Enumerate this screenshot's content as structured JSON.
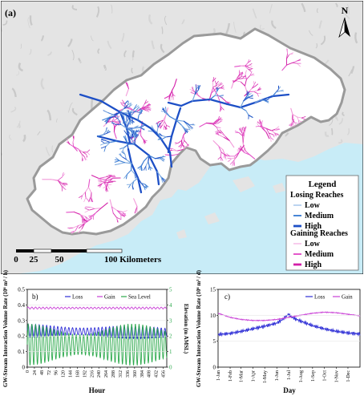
{
  "map": {
    "panel_label": "(a)",
    "north_label": "N",
    "scale_ticks": [
      "0",
      "25",
      "50",
      "100 Kilometers"
    ],
    "legend": {
      "title": "Legend",
      "losing_title": "Losing Reaches",
      "gaining_title": "Gaining Reaches",
      "losing": [
        {
          "label": "Low",
          "color": "#7aa9e0"
        },
        {
          "label": "Medium",
          "color": "#3f7fd4"
        },
        {
          "label": "High",
          "color": "#1d4fc6"
        }
      ],
      "gaining": [
        {
          "label": "Low",
          "color": "#f29ad9"
        },
        {
          "label": "Medium",
          "color": "#e34fc7"
        },
        {
          "label": "High",
          "color": "#d31fa8"
        }
      ]
    },
    "colors": {
      "sea": "#c8ecf7",
      "land": "#e4e4e4",
      "basin": "#ffffff",
      "boundary": "#9a9a9a"
    }
  },
  "chart_data": [
    {
      "type": "line",
      "panel_label": "b)",
      "xlabel": "Hour",
      "ylabel": "GW-Stream Interaction Volume Rate (10⁶ m³ / h)",
      "y2label": "Elevation (m AMSL)",
      "x_ticks": [
        "0",
        "24",
        "48",
        "72",
        "96",
        "120",
        "144",
        "168",
        "192",
        "216",
        "240",
        "264",
        "288",
        "312",
        "336",
        "360",
        "384",
        "408",
        "432",
        "456"
      ],
      "xlim": [
        0,
        468
      ],
      "ylim": [
        0,
        0.5
      ],
      "y_ticks": [
        "0",
        "0.1",
        "0.2",
        "0.3",
        "0.4",
        "0.5"
      ],
      "y2lim": [
        0,
        5
      ],
      "y2_ticks": [
        "0",
        "1",
        "2",
        "3",
        "4",
        "5"
      ],
      "series": [
        {
          "name": "Loss",
          "axis": "left",
          "color": "#2f2fd6",
          "base": 0.235,
          "amp": 0.032,
          "period": 12.4,
          "mod": 0.3,
          "trend": -3e-05
        },
        {
          "name": "Gain",
          "axis": "left",
          "color": "#c93fd6",
          "base": 0.38,
          "amp": 0.006,
          "period": 12.4,
          "mod": 0.1,
          "trend": 0
        },
        {
          "name": "Sea Level",
          "axis": "right",
          "color": "#2aa84a",
          "base": 1.45,
          "amp": 1.0,
          "period": 12.4,
          "mod": 0.35,
          "trend": 0
        }
      ]
    },
    {
      "type": "line",
      "panel_label": "c)",
      "xlabel": "Day",
      "ylabel": "GW-Stream Interaction Volume Rate (10⁶ m³ / d)",
      "x_ticks": [
        "1-Jan",
        "1-Feb",
        "1-Mar",
        "1-Apr",
        "1-May",
        "1-Jun",
        "1-Jul",
        "1-Aug",
        "1-Sep",
        "1-Oct",
        "1-Nov",
        "1-Dec"
      ],
      "x_days": [
        0,
        31,
        59,
        90,
        120,
        151,
        181,
        212,
        243,
        273,
        304,
        334
      ],
      "xlim": [
        0,
        365
      ],
      "ylim": [
        0,
        15
      ],
      "y_ticks": [
        "0",
        "5",
        "10",
        "15"
      ],
      "series": [
        {
          "name": "Loss",
          "color": "#2f2fd6",
          "x": [
            0,
            31,
            59,
            90,
            120,
            151,
            166,
            181,
            190,
            212,
            243,
            273,
            304,
            334,
            365
          ],
          "y": [
            6.3,
            6.5,
            6.9,
            7.4,
            7.9,
            8.5,
            9.2,
            10.2,
            9.6,
            8.9,
            8.0,
            7.4,
            6.9,
            6.6,
            6.4
          ]
        },
        {
          "name": "Gain",
          "color": "#c93fd6",
          "x": [
            0,
            31,
            59,
            90,
            120,
            151,
            181,
            212,
            243,
            273,
            304,
            334,
            365
          ],
          "y": [
            10.4,
            9.6,
            9.2,
            9.0,
            9.0,
            9.2,
            9.6,
            10.0,
            10.4,
            10.6,
            10.5,
            10.2,
            9.9
          ]
        }
      ]
    }
  ]
}
